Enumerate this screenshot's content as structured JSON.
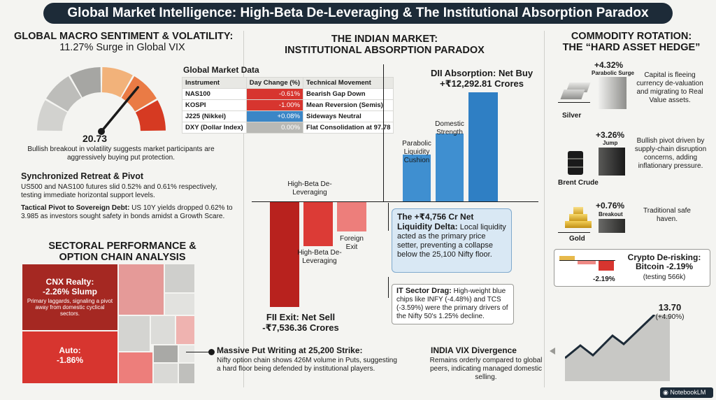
{
  "title": "Global Market Intelligence: High-Beta De-Leveraging & The Institutional Absorption Paradox",
  "macro": {
    "heading1": "GLOBAL MACRO SENTIMENT & VOLATILITY:",
    "heading2": "11.27% Surge in Global VIX",
    "gauge_value": "20.73",
    "gauge_level": 0.72,
    "gauge_caption": "Bullish breakout in volatility suggests market participants are aggressively buying put protection.",
    "gauge_colors": [
      "#d2d2cf",
      "#bdbdba",
      "#a6a6a3",
      "#f2b27a",
      "#ea7b45",
      "#d63a22"
    ],
    "retreat_title": "Synchronized Retreat & Pivot",
    "retreat_text": "US500 and NAS100 futures slid 0.52% and 0.61% respectively, testing immediate horizontal support levels.",
    "pivot_label": "Tactical Pivot to Sovereign Debt:",
    "pivot_text": " US 10Y yields dropped 0.62% to 3.985 as investors sought safety in bonds amidst a Growth Scare."
  },
  "market_table": {
    "title": "Global Market Data",
    "headers": [
      "Instrument",
      "Day Change (%)",
      "Technical Movement"
    ],
    "rows": [
      {
        "instrument": "NAS100",
        "change": "-0.61%",
        "movement": "Bearish Gap Down",
        "tone": "red"
      },
      {
        "instrument": "KOSPI",
        "change": "-1.00%",
        "movement": "Mean Reversion (Semis)",
        "tone": "red"
      },
      {
        "instrument": "J225 (Nikkei)",
        "change": "+0.08%",
        "movement": "Sideways Neutral",
        "tone": "blue"
      },
      {
        "instrument": "DXY (Dollar Index)",
        "change": "0.00%",
        "movement": "Flat Consolidation at 97.78",
        "tone": "grey"
      }
    ]
  },
  "sectoral": {
    "heading1": "SECTORAL PERFORMANCE &",
    "heading2": "OPTION CHAIN ANALYSIS",
    "cnx_title": "CNX Realty:",
    "cnx_value": "-2.26% Slump",
    "cnx_text": "Primary laggards, signaling a pivot away from domestic cyclical sectors.",
    "auto_title": "Auto:",
    "auto_value": "-1.86%",
    "put_title": "Massive Put Writing at 25,200 Strike:",
    "put_text": "Nifty option chain shows 426M volume in Puts, suggesting a hard floor being defended by institutional players."
  },
  "indian": {
    "heading1": "THE INDIAN MARKET:",
    "heading2": "INSTITUTIONAL ABSORPTION PARADOX",
    "dii_title": "DII Absorption: Net Buy",
    "dii_value": "+₹12,292.81 Crores",
    "pos_labels": [
      "Parabolic Liquidity Cushion",
      "Domestic Strength"
    ],
    "pos_values": [
      0.43,
      0.62,
      1.0
    ],
    "neg_top_label": "High-Beta De-Leveraging",
    "neg_labels": [
      "High-Beta De-Leveraging",
      "Foreign Exit"
    ],
    "neg_values": [
      1.0,
      0.42,
      0.28
    ],
    "fii_title": "FII Exit: Net Sell",
    "fii_value": "-₹7,536.36 Crores",
    "delta_title": "The +₹4,756 Cr Net Liquidity Delta:",
    "delta_text": " Local liquidity acted as the primary price setter, preventing a collapse below the 25,100 Nifty floor.",
    "it_title": "IT Sector Drag:",
    "it_text": " High-weight blue chips like INFY (-4.48%) and TCS (-3.59%) were the primary drivers of the Nifty 50's 1.25% decline.",
    "vix_title": "INDIA VIX Divergence",
    "vix_text": "Remains orderly compared to global peers, indicating managed domestic selling.",
    "vix_value": "13.70",
    "vix_change": "(+4.90%)"
  },
  "commodity": {
    "heading1": "COMMODITY ROTATION:",
    "heading2": "THE “HARD ASSET HEDGE”",
    "items": [
      {
        "name": "Silver",
        "change": "+4.32%",
        "tag": "Parabolic Surge",
        "text": "Capital is fleeing currency de-valuation and migrating to Real Value assets."
      },
      {
        "name": "Brent Crude",
        "change": "+3.26%",
        "tag": "Jump",
        "text": "Bullish pivot driven by supply-chain disruption concerns, adding inflationary pressure."
      },
      {
        "name": "Gold",
        "change": "+0.76%",
        "tag": "Breakout",
        "text": "Traditional safe haven."
      }
    ],
    "crypto_title": "Crypto De-risking:",
    "crypto_value": "Bitcoin -2.19%",
    "crypto_sub": "(testing 566k)",
    "crypto_bar_label": "-2.19%"
  },
  "brand": "NotebookLM"
}
